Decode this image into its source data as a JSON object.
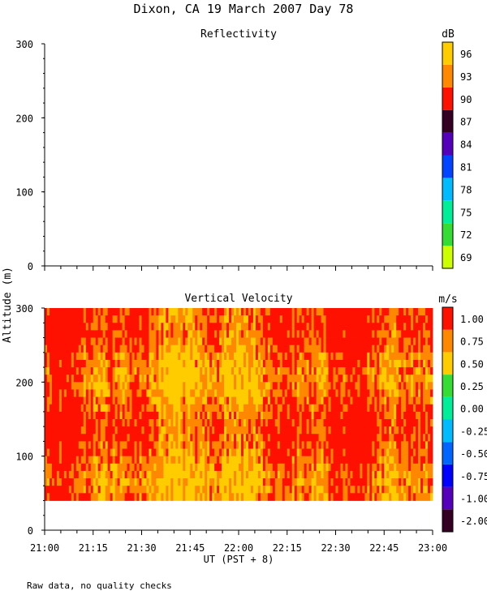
{
  "title": "Dixon, CA 19 March 2007  Day  78",
  "shared_ylabel": "Altitude (m)",
  "footnote": "Raw data, no quality checks",
  "chart_data": [
    {
      "type": "heatmap",
      "title": "Reflectivity",
      "ylim": [
        0,
        300
      ],
      "yticks": [
        0,
        100,
        200,
        300
      ],
      "x_time_range": [
        "21:00",
        "23:00"
      ],
      "data_present": false,
      "colorbar": {
        "unit": "dB",
        "tick_labels": [
          "69",
          "72",
          "75",
          "78",
          "81",
          "84",
          "87",
          "90",
          "93",
          "96"
        ],
        "colors": [
          "#ccff00",
          "#33dd33",
          "#00ee99",
          "#00bbff",
          "#0044ff",
          "#5500bb",
          "#330022",
          "#ff1100",
          "#ff8800",
          "#ffcc00"
        ]
      }
    },
    {
      "type": "heatmap",
      "title": "Vertical Velocity",
      "ylim": [
        0,
        300
      ],
      "yticks": [
        0,
        100,
        200,
        300
      ],
      "xlabel": "UT  (PST + 8)",
      "xtick_labels": [
        "21:00",
        "21:15",
        "21:30",
        "21:45",
        "22:00",
        "22:15",
        "22:30",
        "22:45",
        "23:00"
      ],
      "data_altitude_range": [
        40,
        300
      ],
      "value_colors_present": [
        "#ff1100",
        "#ff8800",
        "#ffcc00"
      ],
      "colorbar": {
        "unit": "m/s",
        "tick_labels": [
          "-2.00",
          "-1.00",
          "-0.75",
          "-0.50",
          "-0.25",
          "0.00",
          "0.25",
          "0.50",
          "0.75",
          "1.00"
        ],
        "colors": [
          "#330022",
          "#5500bb",
          "#0000ff",
          "#0066ff",
          "#00bbff",
          "#00ee99",
          "#33dd33",
          "#ffcc00",
          "#ff8800",
          "#ff1100"
        ]
      }
    }
  ]
}
